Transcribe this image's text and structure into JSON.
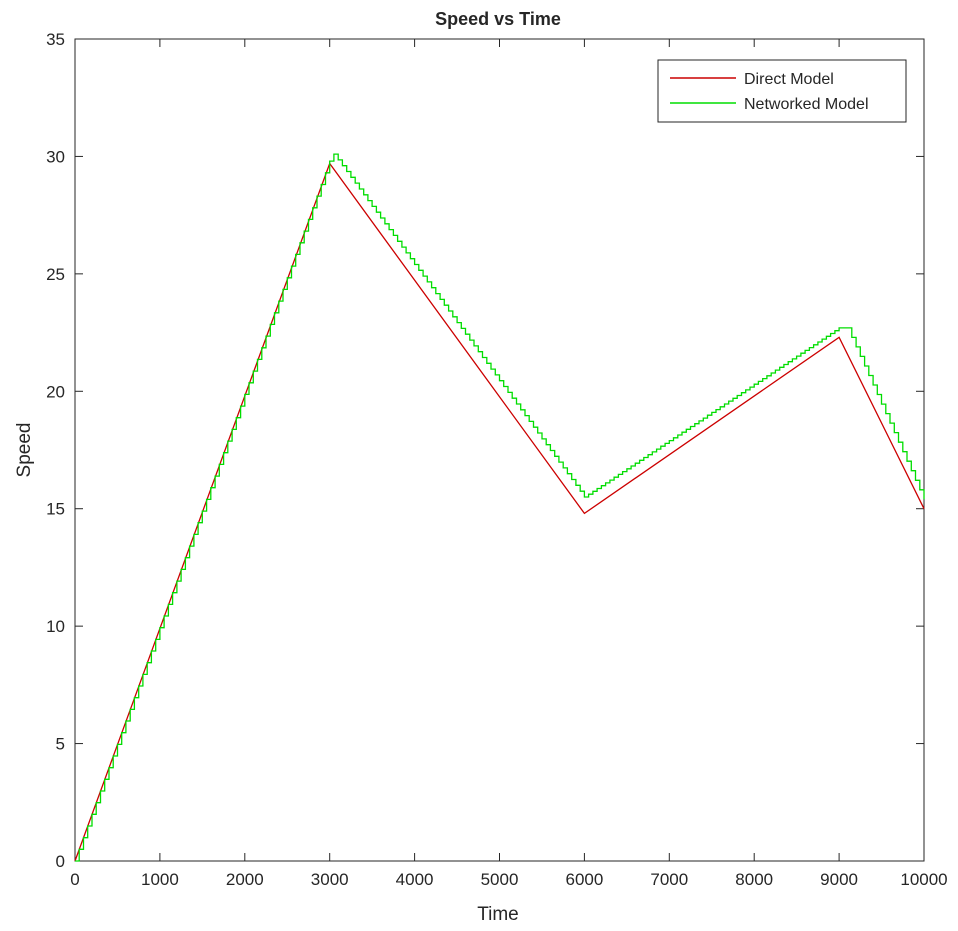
{
  "chart_data": {
    "type": "line",
    "title": "Speed vs Time",
    "xlabel": "Time",
    "ylabel": "Speed",
    "xlim": [
      0,
      10000
    ],
    "ylim": [
      0,
      35
    ],
    "xticks": [
      0,
      1000,
      2000,
      3000,
      4000,
      5000,
      6000,
      7000,
      8000,
      9000,
      10000
    ],
    "yticks": [
      0,
      5,
      10,
      15,
      20,
      25,
      30,
      35
    ],
    "grid": false,
    "legend_position": "top-right",
    "series": [
      {
        "name": "Direct Model",
        "color": "#cc0000",
        "style": "line",
        "x": [
          0,
          3000,
          6000,
          9000,
          10000
        ],
        "y": [
          0,
          29.7,
          14.8,
          22.3,
          15.0
        ]
      },
      {
        "name": "Networked Model",
        "color": "#00dd00",
        "style": "step",
        "x": [
          0,
          3000,
          3050,
          6000,
          9000,
          9100,
          10000
        ],
        "y": [
          0,
          29.8,
          30.1,
          15.5,
          22.7,
          22.7,
          15.4
        ]
      }
    ]
  }
}
